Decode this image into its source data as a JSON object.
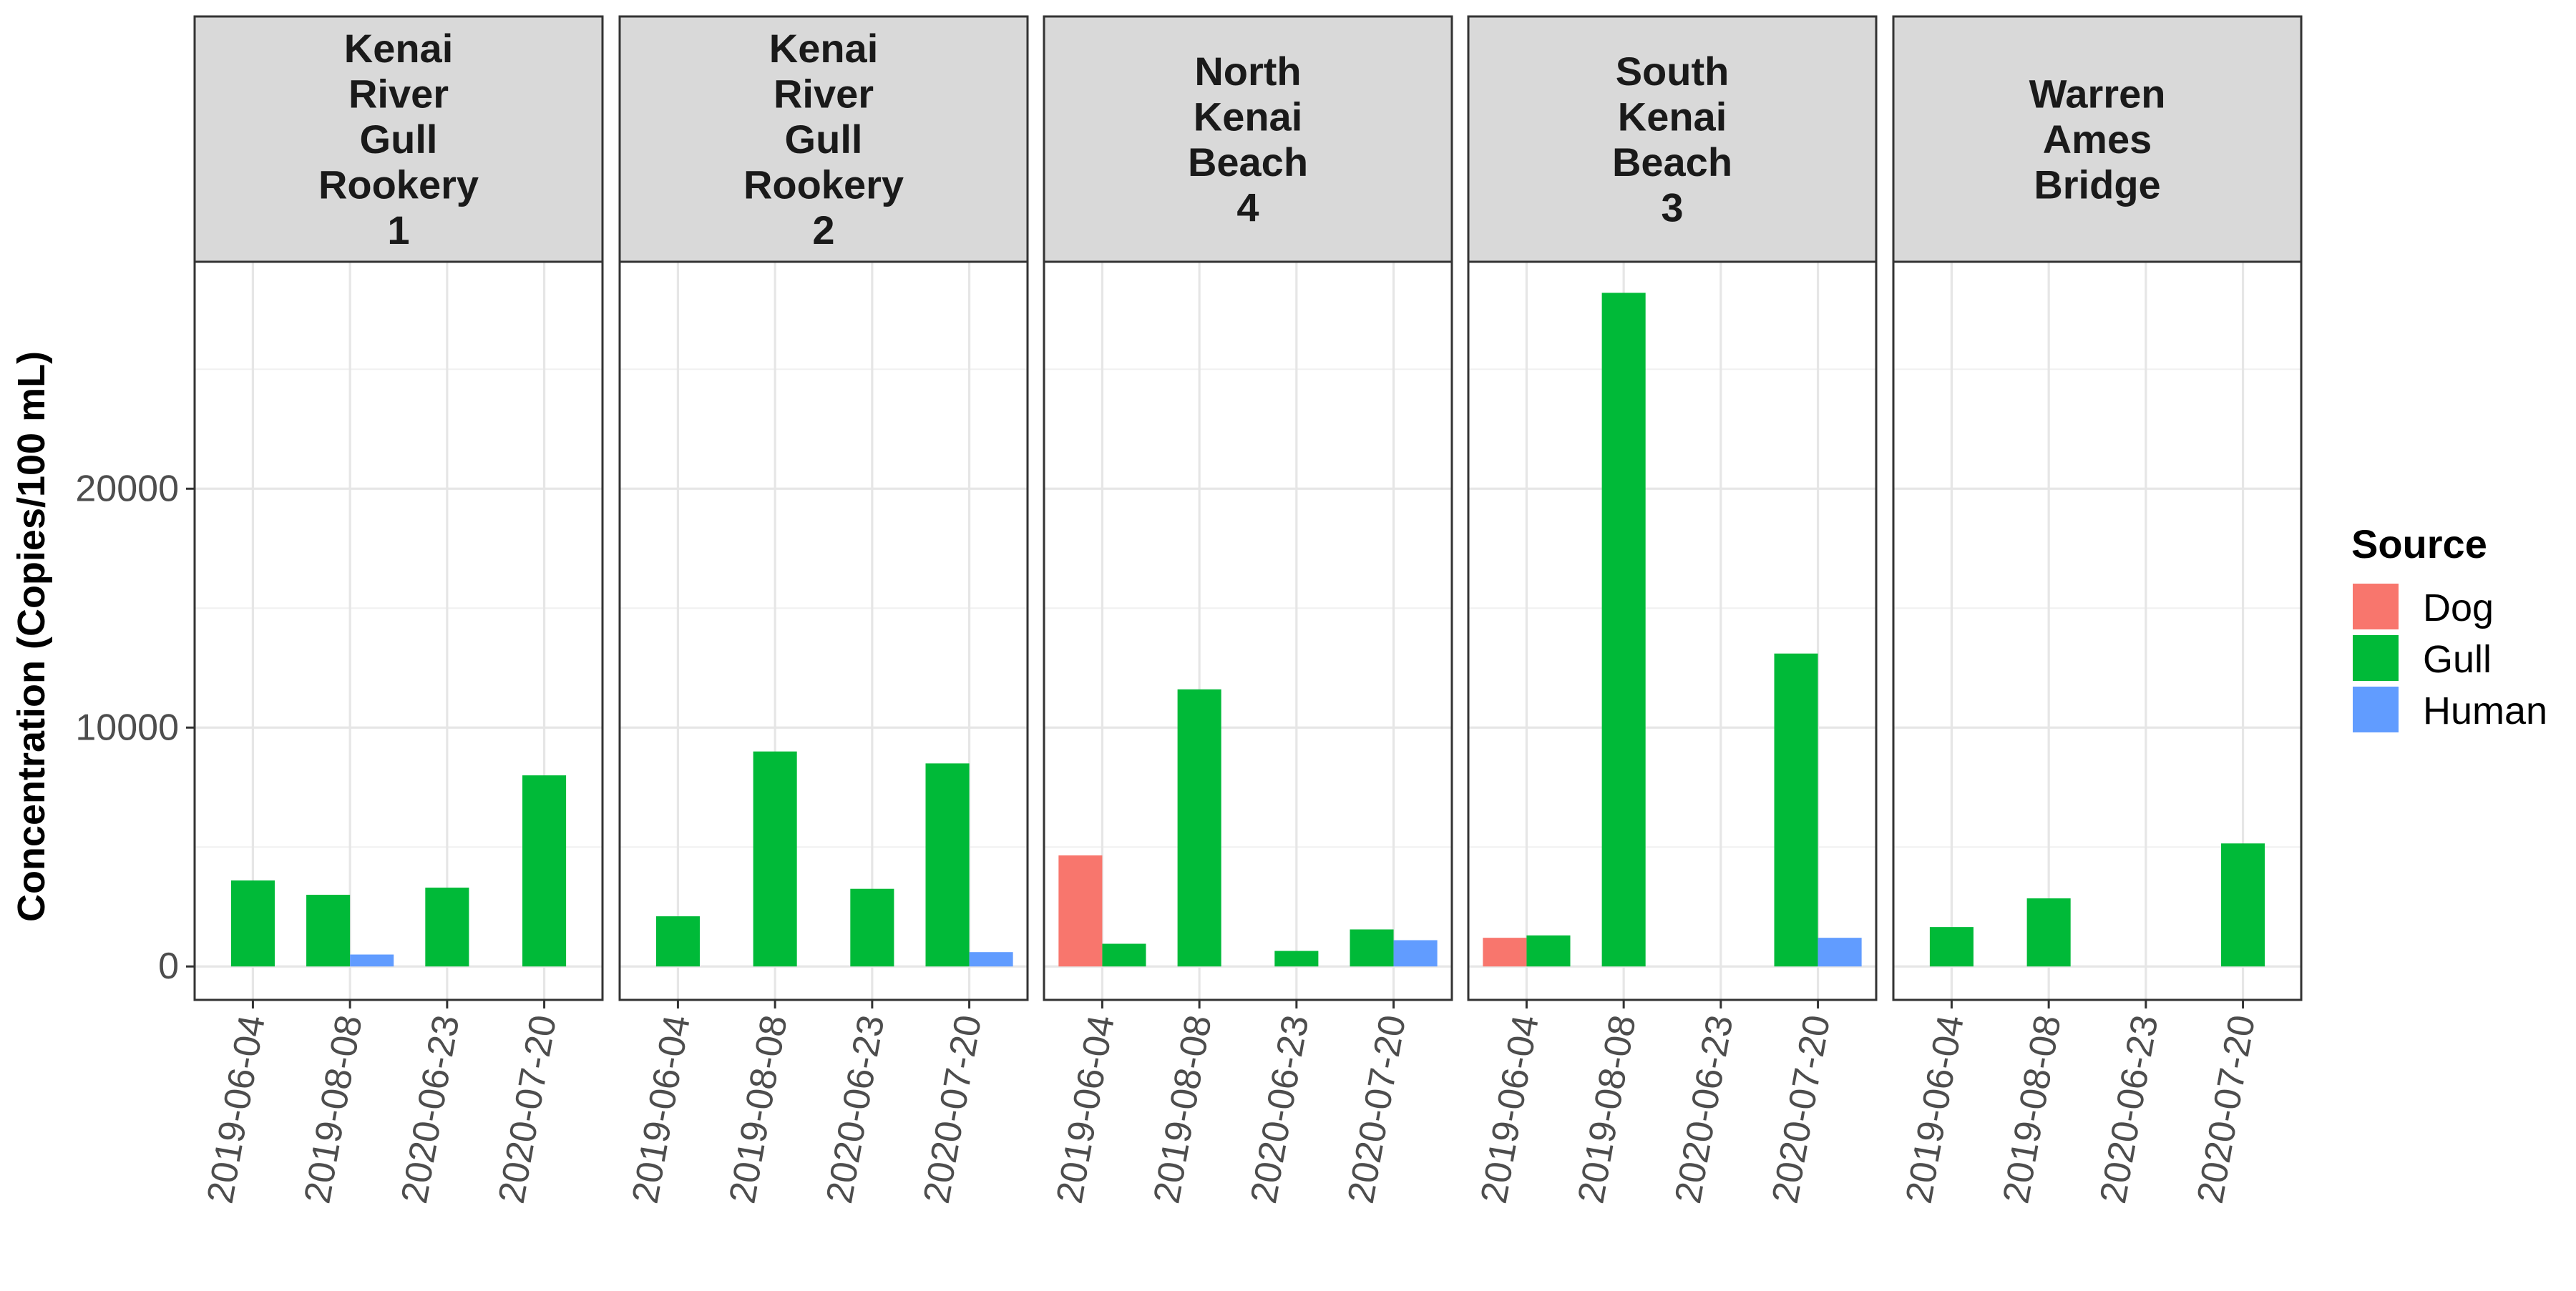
{
  "chart_data": {
    "type": "bar",
    "ylabel": "Concentration (Copies/100 mL)",
    "xlabel": "",
    "ylim": [
      -1400,
      29500
    ],
    "yticks": [
      0,
      10000,
      20000
    ],
    "ytick_labels": [
      "0",
      "10000",
      "20000"
    ],
    "grid": true,
    "legend": {
      "title": "Source",
      "position": "right"
    },
    "categories": [
      "2019-06-04",
      "2019-08-08",
      "2020-06-23",
      "2020-07-20"
    ],
    "series_colors": {
      "Dog": "#F8766D",
      "Gull": "#00BA38",
      "Human": "#619CFF"
    },
    "panels": [
      {
        "title_lines": [
          "Kenai",
          "River",
          "Gull",
          "Rookery",
          "1"
        ],
        "bars": [
          {
            "date": "2019-06-04",
            "Gull": 3600
          },
          {
            "date": "2019-08-08",
            "Gull": 3000,
            "Human": 500
          },
          {
            "date": "2020-06-23",
            "Gull": 3300
          },
          {
            "date": "2020-07-20",
            "Gull": 8000
          }
        ]
      },
      {
        "title_lines": [
          "Kenai",
          "River",
          "Gull",
          "Rookery",
          "2"
        ],
        "bars": [
          {
            "date": "2019-06-04",
            "Gull": 2100
          },
          {
            "date": "2019-08-08",
            "Gull": 9000
          },
          {
            "date": "2020-06-23",
            "Gull": 3250
          },
          {
            "date": "2020-07-20",
            "Gull": 8500,
            "Human": 600
          }
        ]
      },
      {
        "title_lines": [
          "North",
          "Kenai",
          "Beach",
          "4"
        ],
        "bars": [
          {
            "date": "2019-06-04",
            "Dog": 4650,
            "Gull": 950
          },
          {
            "date": "2019-08-08",
            "Gull": 11600
          },
          {
            "date": "2020-06-23",
            "Gull": 650
          },
          {
            "date": "2020-07-20",
            "Gull": 1550,
            "Human": 1100
          }
        ]
      },
      {
        "title_lines": [
          "South",
          "Kenai",
          "Beach",
          "3"
        ],
        "bars": [
          {
            "date": "2019-06-04",
            "Dog": 1200,
            "Gull": 1300
          },
          {
            "date": "2019-08-08",
            "Gull": 28200
          },
          {
            "date": "2020-07-20",
            "Gull": 13100,
            "Human": 1200
          }
        ]
      },
      {
        "title_lines": [
          "Warren",
          "Ames",
          "Bridge"
        ],
        "bars": [
          {
            "date": "2019-06-04",
            "Gull": 1650
          },
          {
            "date": "2019-08-08",
            "Gull": 2850
          },
          {
            "date": "2020-07-20",
            "Gull": 5150
          }
        ]
      }
    ],
    "series": [
      {
        "name": "Dog"
      },
      {
        "name": "Gull"
      },
      {
        "name": "Human"
      }
    ]
  }
}
